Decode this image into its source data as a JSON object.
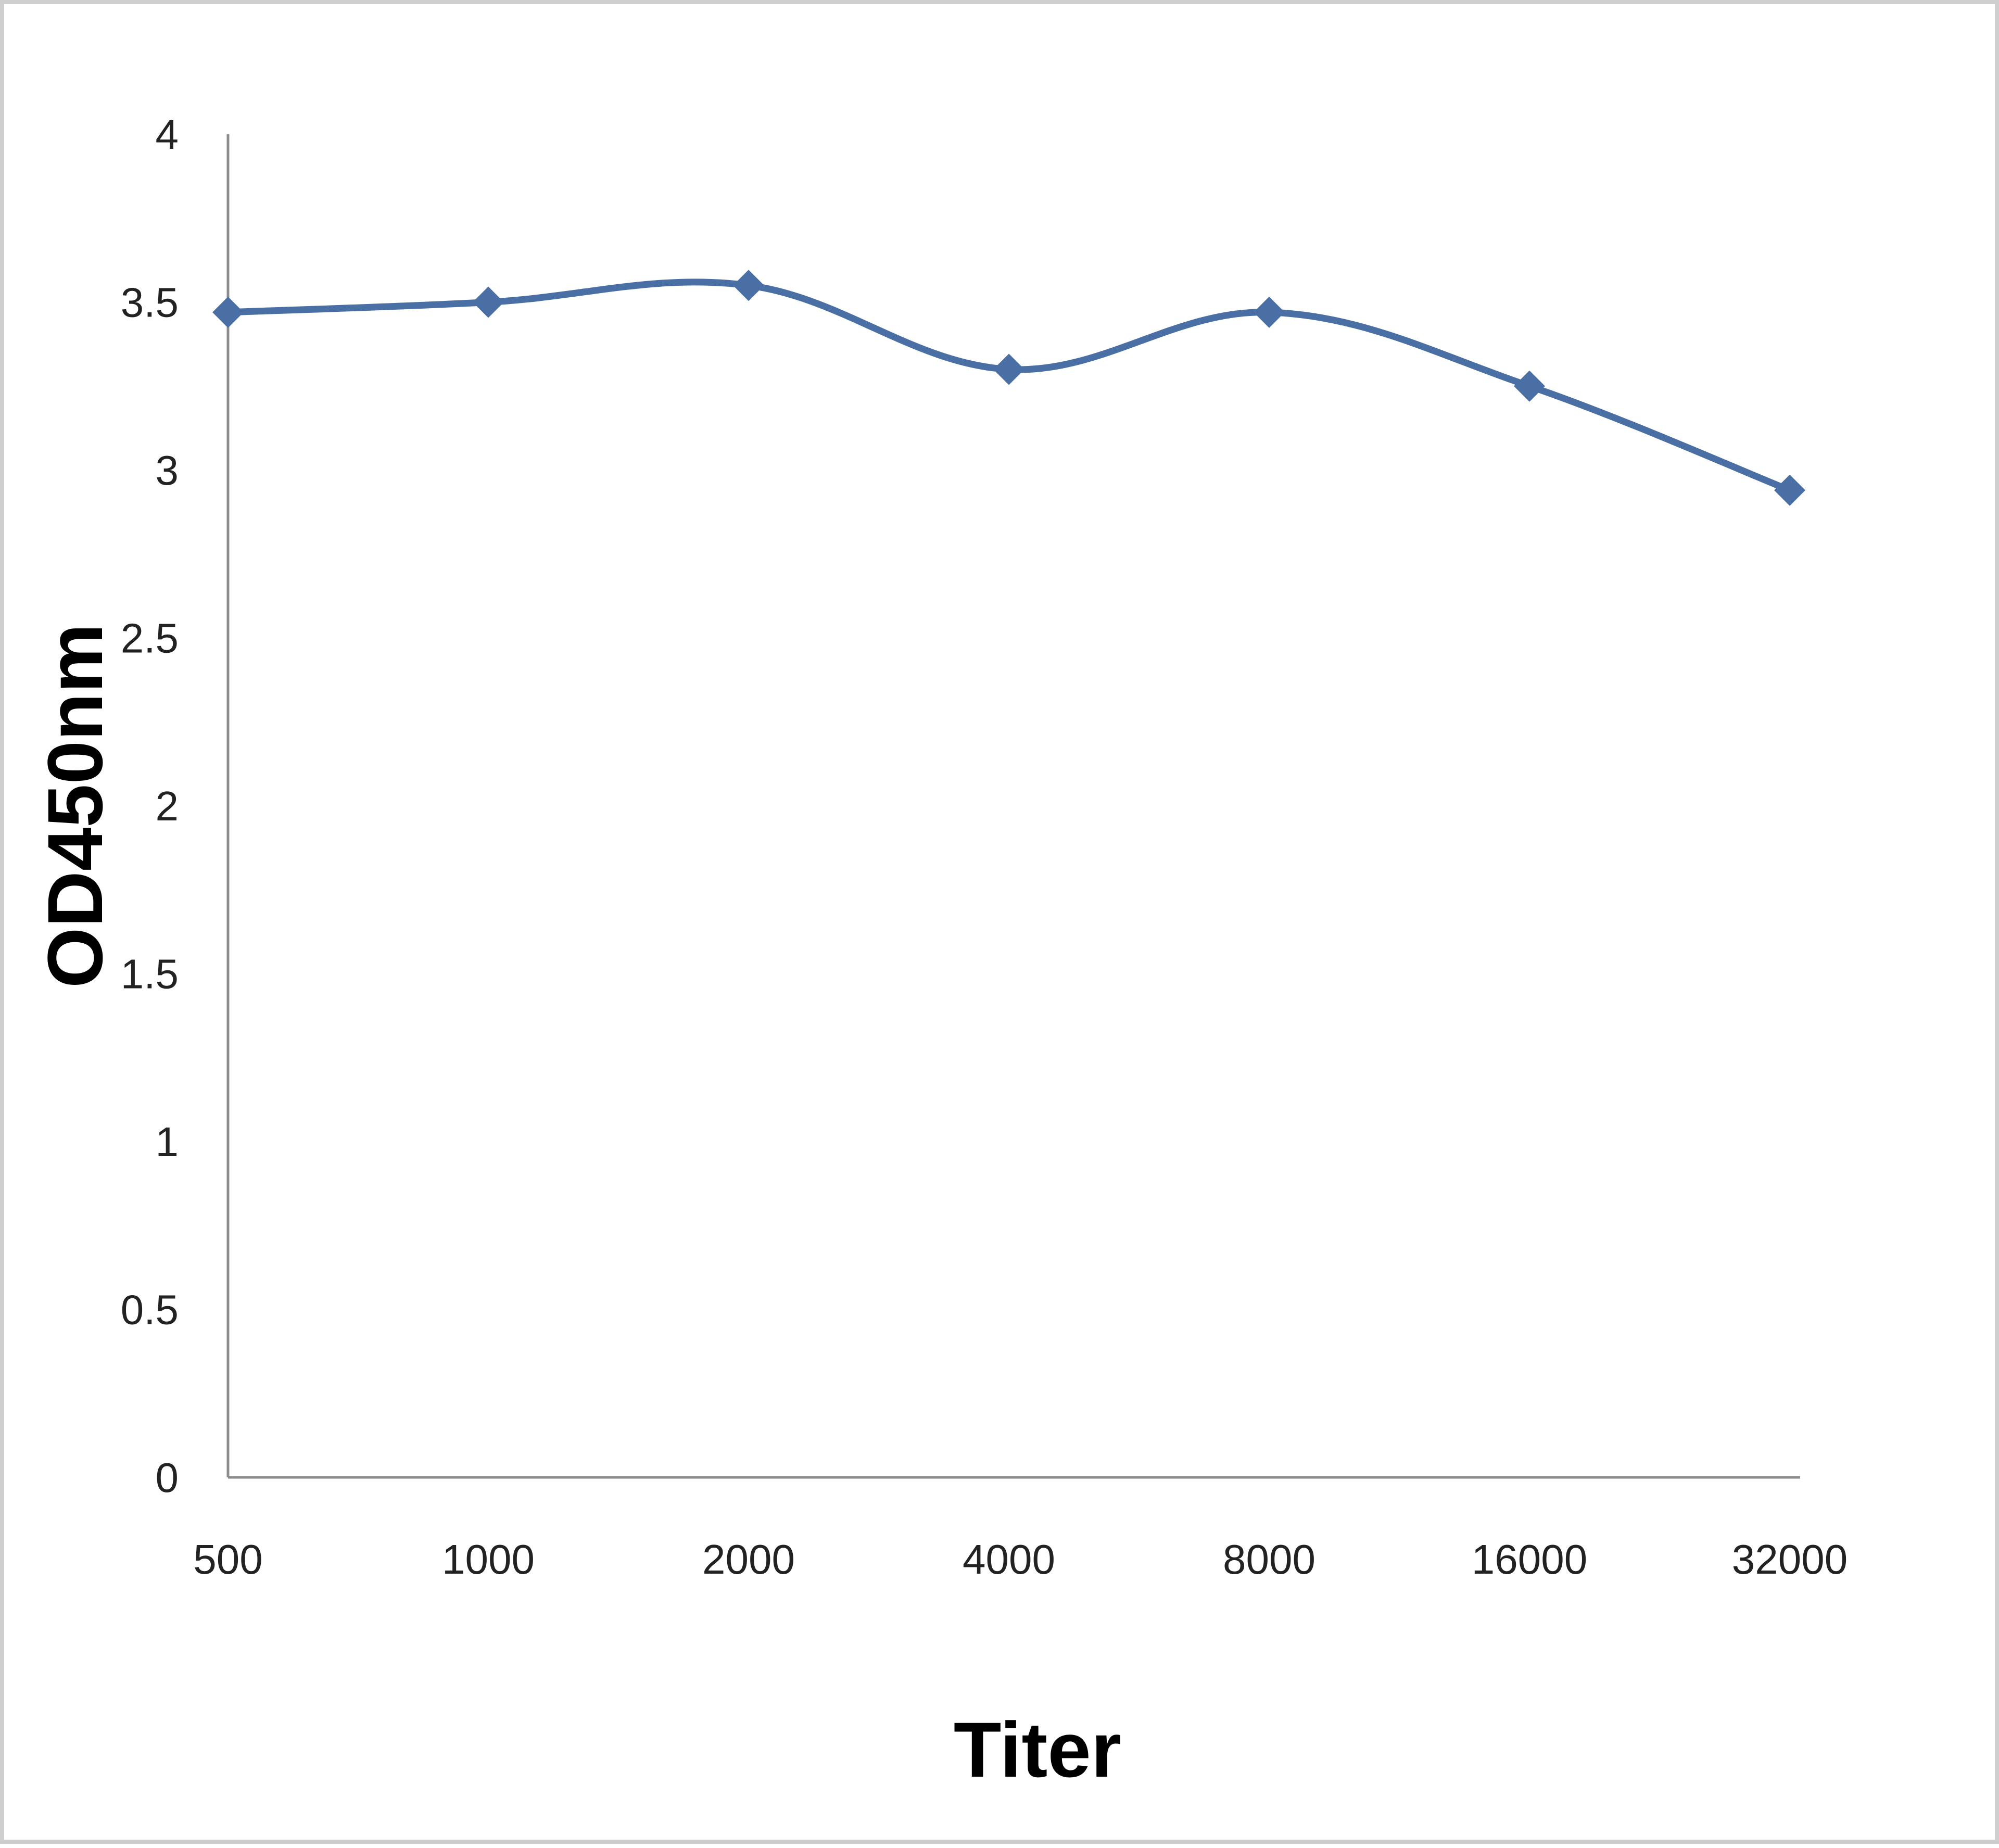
{
  "chart_data": {
    "type": "line",
    "title": "",
    "xlabel": "Titer",
    "ylabel": "OD450nm",
    "categories": [
      "500",
      "1000",
      "2000",
      "4000",
      "8000",
      "16000",
      "32000"
    ],
    "series": [
      {
        "values": [
          3.47,
          3.5,
          3.55,
          3.3,
          3.47,
          3.25,
          2.94
        ],
        "color": "#4a6fa5",
        "marker": "diamond",
        "smooth": true
      }
    ],
    "ylim": [
      0,
      4
    ],
    "yticks": [
      "0",
      "0.5",
      "1",
      "1.5",
      "2",
      "2.5",
      "3",
      "3.5",
      "4"
    ],
    "grid": false,
    "legend": "none"
  }
}
